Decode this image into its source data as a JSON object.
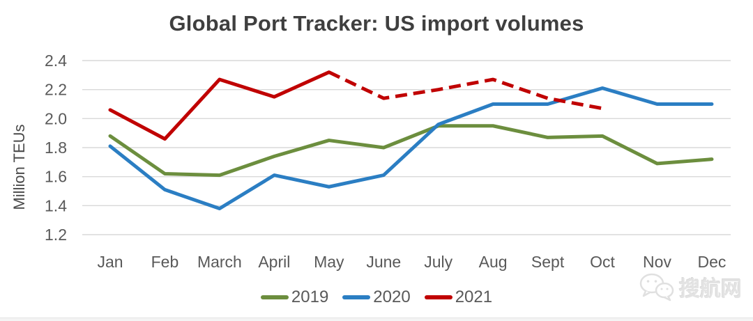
{
  "chart_data": {
    "type": "line",
    "title": "Global Port Tracker: US import volumes",
    "ylabel": "Million TEUs",
    "xlabel": "",
    "categories": [
      "Jan",
      "Feb",
      "March",
      "April",
      "May",
      "June",
      "July",
      "Aug",
      "Sept",
      "Oct",
      "Nov",
      "Dec"
    ],
    "yticks": [
      "2.4",
      "2.2",
      "2.0",
      "1.8",
      "1.6",
      "1.4",
      "1.2"
    ],
    "ylim": [
      1.2,
      2.4
    ],
    "grid": true,
    "legend_position": "bottom",
    "series": [
      {
        "name": "2019",
        "color": "#6c8e3e",
        "style": "solid",
        "values": [
          1.88,
          1.62,
          1.61,
          1.74,
          1.85,
          1.8,
          1.95,
          1.95,
          1.87,
          1.88,
          1.69,
          1.72
        ]
      },
      {
        "name": "2020",
        "color": "#2b7ec3",
        "style": "solid",
        "values": [
          1.81,
          1.51,
          1.38,
          1.61,
          1.53,
          1.61,
          1.96,
          2.1,
          2.1,
          2.21,
          2.1,
          2.1
        ]
      },
      {
        "name": "2021",
        "color": "#c00000",
        "style": "solid-then-dashed",
        "solid_until_index": 4,
        "values": [
          2.06,
          1.86,
          2.27,
          2.15,
          2.32,
          2.14,
          2.2,
          2.27,
          2.14,
          2.07
        ]
      }
    ]
  },
  "watermark": {
    "icon": "wechat-icon",
    "text": "搜航网"
  },
  "colors": {
    "title_text": "#3f3f3f",
    "axis_text": "#595959",
    "gridline": "#d9d9d9",
    "background": "#ffffff"
  }
}
